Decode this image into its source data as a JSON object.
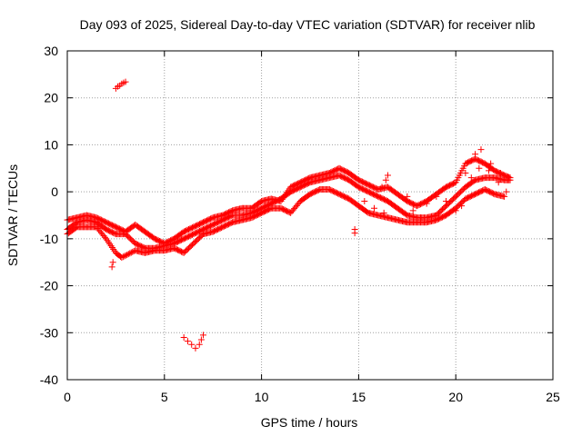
{
  "chart_data": {
    "type": "scatter",
    "title": "Day 093 of 2025, Sidereal Day-to-day VTEC variation (SDTVAR) for receiver nlib",
    "xlabel": "GPS time / hours",
    "ylabel": "SDTVAR / TECUs",
    "xlim": [
      0,
      25
    ],
    "ylim": [
      -40,
      30
    ],
    "x_ticks": [
      0,
      5,
      10,
      15,
      20,
      25
    ],
    "y_ticks": [
      -40,
      -30,
      -20,
      -10,
      0,
      10,
      20,
      30
    ],
    "grid": true,
    "marker": "+",
    "colors": {
      "series": "#ff0000",
      "axis": "#000000",
      "grid": "#a0a0a0"
    },
    "series": [
      {
        "name": "track-main",
        "points": [
          [
            0,
            -8
          ],
          [
            0.5,
            -6.5
          ],
          [
            1,
            -6
          ],
          [
            1.5,
            -6.5
          ],
          [
            2,
            -8
          ],
          [
            2.5,
            -9
          ],
          [
            3,
            -9
          ],
          [
            3.5,
            -11
          ],
          [
            4,
            -12
          ],
          [
            4.5,
            -12
          ],
          [
            5,
            -11.5
          ],
          [
            5.5,
            -11
          ],
          [
            6,
            -10
          ],
          [
            6.5,
            -9
          ],
          [
            7,
            -8
          ],
          [
            7.5,
            -7
          ],
          [
            8,
            -6
          ],
          [
            8.5,
            -5
          ],
          [
            9,
            -5
          ],
          [
            9.5,
            -4.5
          ],
          [
            10,
            -3.5
          ],
          [
            10.5,
            -2.5
          ],
          [
            11,
            -1.5
          ],
          [
            11.5,
            0
          ],
          [
            12,
            1
          ],
          [
            12.5,
            2
          ],
          [
            13,
            2.5
          ],
          [
            13.5,
            3
          ],
          [
            14,
            3.5
          ],
          [
            14.5,
            2.5
          ],
          [
            15,
            1
          ],
          [
            15.5,
            0
          ],
          [
            16,
            -1
          ],
          [
            16.5,
            -2
          ],
          [
            17,
            -3.5
          ],
          [
            17.5,
            -5
          ],
          [
            18,
            -5.5
          ],
          [
            18.5,
            -5.5
          ],
          [
            19,
            -5
          ],
          [
            19.5,
            -3
          ],
          [
            20,
            -1
          ],
          [
            20.5,
            1
          ],
          [
            21,
            2.5
          ],
          [
            21.5,
            3
          ],
          [
            22,
            3
          ],
          [
            22.5,
            2.5
          ],
          [
            22.8,
            2.5
          ]
        ]
      },
      {
        "name": "track-upper",
        "points": [
          [
            0,
            -6
          ],
          [
            0.5,
            -5.5
          ],
          [
            1,
            -5
          ],
          [
            1.5,
            -5.5
          ],
          [
            2,
            -6.5
          ],
          [
            2.5,
            -7.5
          ],
          [
            3,
            -8.5
          ],
          [
            3.5,
            -7
          ],
          [
            4,
            -8.5
          ],
          [
            4.5,
            -10
          ],
          [
            5,
            -11
          ],
          [
            5.5,
            -10
          ],
          [
            6,
            -8.5
          ],
          [
            6.5,
            -7.5
          ],
          [
            7,
            -6.5
          ],
          [
            7.5,
            -5.5
          ],
          [
            8,
            -5
          ],
          [
            8.5,
            -4
          ],
          [
            9,
            -3.5
          ],
          [
            9.5,
            -3.5
          ],
          [
            10,
            -2
          ],
          [
            10.5,
            -1.5
          ],
          [
            11,
            -2
          ],
          [
            11.5,
            1
          ],
          [
            12,
            2
          ],
          [
            12.5,
            3
          ],
          [
            13,
            3.5
          ],
          [
            13.5,
            4
          ],
          [
            14,
            5
          ],
          [
            14.5,
            4
          ],
          [
            15,
            2.5
          ],
          [
            15.5,
            1.5
          ],
          [
            16,
            0.5
          ],
          [
            16.5,
            1
          ],
          [
            17,
            -0.5
          ],
          [
            17.5,
            -2
          ],
          [
            18,
            -3
          ],
          [
            18.5,
            -2
          ],
          [
            19,
            -0.5
          ],
          [
            19.5,
            1
          ],
          [
            20,
            2
          ],
          [
            20.5,
            6
          ],
          [
            21,
            7
          ],
          [
            21.5,
            6
          ],
          [
            22,
            4.5
          ],
          [
            22.5,
            3.5
          ],
          [
            22.8,
            3
          ]
        ]
      },
      {
        "name": "track-lower",
        "points": [
          [
            0,
            -9
          ],
          [
            0.5,
            -7.5
          ],
          [
            1,
            -7.5
          ],
          [
            1.5,
            -7.5
          ],
          [
            2,
            -10
          ],
          [
            2.5,
            -13
          ],
          [
            2.8,
            -14
          ],
          [
            3.5,
            -12.5
          ],
          [
            4,
            -13
          ],
          [
            4.5,
            -12.5
          ],
          [
            5,
            -12.5
          ],
          [
            5.5,
            -12
          ],
          [
            6,
            -13
          ],
          [
            6.5,
            -11
          ],
          [
            7,
            -9
          ],
          [
            7.5,
            -8.5
          ],
          [
            8,
            -7.5
          ],
          [
            8.5,
            -6.5
          ],
          [
            9,
            -6
          ],
          [
            9.5,
            -5.5
          ],
          [
            10,
            -4.5
          ],
          [
            10.5,
            -3.5
          ],
          [
            11,
            -3.5
          ],
          [
            11.5,
            -4.5
          ],
          [
            12,
            -2
          ],
          [
            12.5,
            -0.5
          ],
          [
            13,
            0.5
          ],
          [
            13.5,
            0.5
          ],
          [
            14,
            -0.5
          ],
          [
            14.5,
            -1.5
          ],
          [
            15,
            -3
          ],
          [
            15.5,
            -4.5
          ],
          [
            16,
            -5
          ],
          [
            16.5,
            -5.5
          ],
          [
            17,
            -6
          ],
          [
            17.5,
            -6.5
          ],
          [
            18,
            -6.5
          ],
          [
            18.5,
            -6.5
          ],
          [
            19,
            -6
          ],
          [
            19.5,
            -5
          ],
          [
            20,
            -3.5
          ],
          [
            20.5,
            -1.5
          ],
          [
            21,
            -0.5
          ],
          [
            21.5,
            0.5
          ],
          [
            22,
            -0.5
          ],
          [
            22.5,
            -1
          ]
        ]
      },
      {
        "name": "track-branches",
        "points": [
          [
            20.5,
            4
          ],
          [
            21,
            8
          ],
          [
            21.3,
            9
          ],
          [
            21.8,
            6
          ],
          [
            22.3,
            4
          ],
          [
            22.7,
            3
          ],
          [
            20.8,
            3
          ],
          [
            21.2,
            5
          ],
          [
            21.7,
            4.5
          ],
          [
            22.2,
            2
          ],
          [
            22.6,
            0
          ],
          [
            19,
            -1
          ],
          [
            19.5,
            -2
          ],
          [
            20,
            -4
          ],
          [
            20.3,
            -3
          ],
          [
            17.5,
            -1
          ],
          [
            17.8,
            -4
          ],
          [
            18.2,
            -5.5
          ],
          [
            16.2,
            1
          ],
          [
            16.4,
            2.5
          ],
          [
            16.5,
            3.5
          ],
          [
            15.3,
            -2
          ],
          [
            15.8,
            -3.5
          ],
          [
            16.3,
            -4.5
          ]
        ]
      },
      {
        "name": "cluster-upper-left",
        "points": [
          [
            2.5,
            22
          ],
          [
            2.6,
            22.4
          ],
          [
            2.7,
            22.6
          ],
          [
            2.8,
            23
          ],
          [
            2.9,
            23.2
          ],
          [
            3.0,
            23.4
          ]
        ]
      },
      {
        "name": "cluster-lower",
        "points": [
          [
            6.0,
            -31
          ],
          [
            6.2,
            -31.8
          ],
          [
            6.4,
            -32.5
          ],
          [
            6.6,
            -33.3
          ],
          [
            6.8,
            -32.5
          ],
          [
            6.9,
            -31.5
          ],
          [
            7.0,
            -30.5
          ]
        ]
      },
      {
        "name": "outliers",
        "points": [
          [
            2.3,
            -16
          ],
          [
            2.35,
            -15
          ],
          [
            14.8,
            -8
          ],
          [
            14.8,
            -8.8
          ],
          [
            18.5,
            -2.5
          ]
        ]
      }
    ]
  }
}
